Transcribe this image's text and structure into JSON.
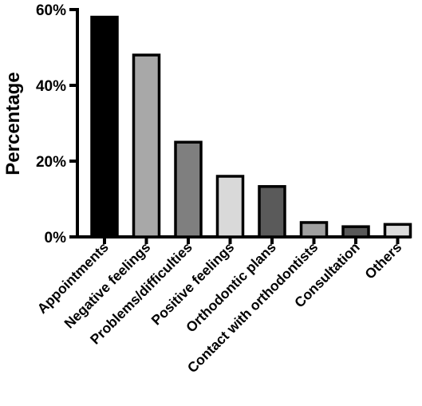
{
  "chart_data": {
    "type": "bar",
    "title": "",
    "xlabel": "",
    "ylabel": "Percentage",
    "ylim": [
      0,
      60
    ],
    "y_ticks": [
      "0%",
      "20%",
      "40%",
      "60%"
    ],
    "y_tick_values": [
      0,
      20,
      40,
      60
    ],
    "grid": false,
    "legend": "none",
    "categories": [
      "Appointments",
      "Negative feelings",
      "Problems/difficulties",
      "Positive feelings",
      "Orthodontic plans",
      "Contact with orthodontists",
      "Consultation",
      "Others"
    ],
    "values": [
      58,
      48,
      25,
      16,
      13.3,
      3.8,
      2.7,
      3.3
    ],
    "bar_colors": [
      "#000000",
      "#a8a8a8",
      "#7f7f7f",
      "#d9d9d9",
      "#5a5a5a",
      "#a0a0a0",
      "#595959",
      "#dcdcdc"
    ]
  }
}
